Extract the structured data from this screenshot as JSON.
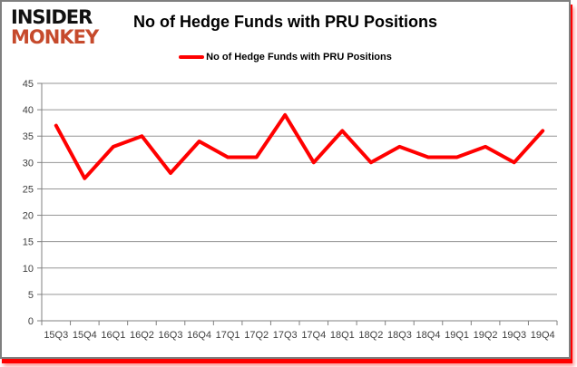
{
  "logo": {
    "line1": "INSIDER",
    "line2": "MONKEY"
  },
  "header": {
    "title": "No of Hedge Funds with PRU Positions"
  },
  "legend": {
    "label": "No of Hedge Funds with PRU Positions"
  },
  "colors": {
    "series_line": "#ff0000",
    "gridline": "#969696",
    "axis": "#808080",
    "tick_label": "#3f3f3f",
    "title_text": "#000000",
    "logo_black": "#111111",
    "logo_red": "#c64a2c",
    "card_border": "#7f7f7f",
    "shadow_red": "#ff0000"
  },
  "chart_data": {
    "type": "line",
    "title": "No of Hedge Funds with PRU Positions",
    "categories": [
      "15Q3",
      "15Q4",
      "16Q1",
      "16Q2",
      "16Q3",
      "16Q4",
      "17Q1",
      "17Q2",
      "17Q3",
      "17Q4",
      "18Q1",
      "18Q2",
      "18Q3",
      "18Q4",
      "19Q1",
      "19Q2",
      "19Q3",
      "19Q4"
    ],
    "series": [
      {
        "name": "No of Hedge Funds with PRU Positions",
        "color": "#ff0000",
        "values": [
          37,
          27,
          33,
          35,
          28,
          34,
          31,
          31,
          39,
          30,
          36,
          30,
          33,
          31,
          31,
          33,
          30,
          36
        ]
      }
    ],
    "xlabel": "",
    "ylabel": "",
    "ylim": [
      0,
      45
    ],
    "ytick_step": 5,
    "yticks": [
      0,
      5,
      10,
      15,
      20,
      25,
      30,
      35,
      40,
      45
    ],
    "grid": "horizontal-only",
    "legend_position": "top-center",
    "markers": "none"
  }
}
